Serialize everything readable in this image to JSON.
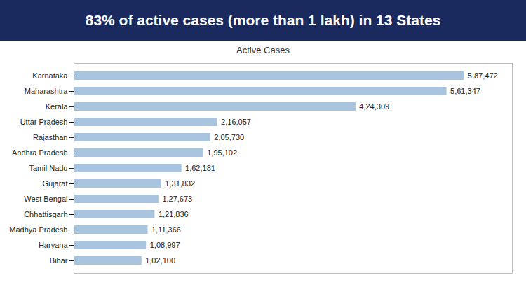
{
  "chart_data": {
    "type": "bar",
    "title": "83% of active cases (more than 1 lakh) in 13 States",
    "subtitle": "Active Cases",
    "orientation": "horizontal",
    "categories": [
      "Karnataka",
      "Maharashtra",
      "Kerala",
      "Uttar Pradesh",
      "Rajasthan",
      "Andhra Pradesh",
      "Tamil Nadu",
      "Gujarat",
      "West Bengal",
      "Chhattisgarh",
      "Madhya Pradesh",
      "Haryana",
      "Bihar"
    ],
    "values": [
      587472,
      561347,
      424309,
      216057,
      205730,
      195102,
      162181,
      131832,
      127673,
      121836,
      111366,
      108997,
      102100
    ],
    "value_labels": [
      "5,87,472",
      "5,61,347",
      "4,24,309",
      "2,16,057",
      "2,05,730",
      "1,95,102",
      "1,62,181",
      "1,31,832",
      "1,27,673",
      "1,21,836",
      "1,11,366",
      "1,08,997",
      "1,02,100"
    ],
    "data_labels": true,
    "color": "#a8c4df",
    "xlim": [
      0,
      660000
    ],
    "tick_labels": "y",
    "grid": false
  }
}
